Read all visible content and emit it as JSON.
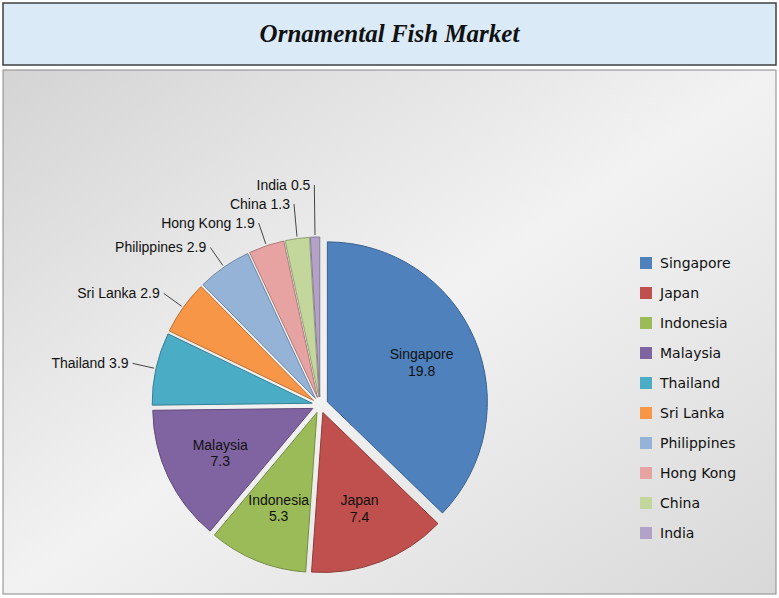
{
  "chart_data": {
    "type": "pie",
    "title": "Ornamental Fish Market",
    "categories": [
      "Singapore",
      "Japan",
      "Indonesia",
      "Malaysia",
      "Thailand",
      "Sri Lanka",
      "Philippines",
      "Hong Kong",
      "China",
      "India"
    ],
    "values": [
      19.8,
      7.4,
      5.3,
      7.3,
      3.9,
      2.9,
      2.9,
      1.9,
      1.3,
      0.5
    ],
    "colors": [
      "#4f81bd",
      "#c0504d",
      "#9bbb59",
      "#8064a2",
      "#4bacc6",
      "#f79646",
      "#95b3d7",
      "#e6a3a1",
      "#c3d69b",
      "#b3a2c7"
    ],
    "data_labels": true,
    "legend": "right"
  }
}
